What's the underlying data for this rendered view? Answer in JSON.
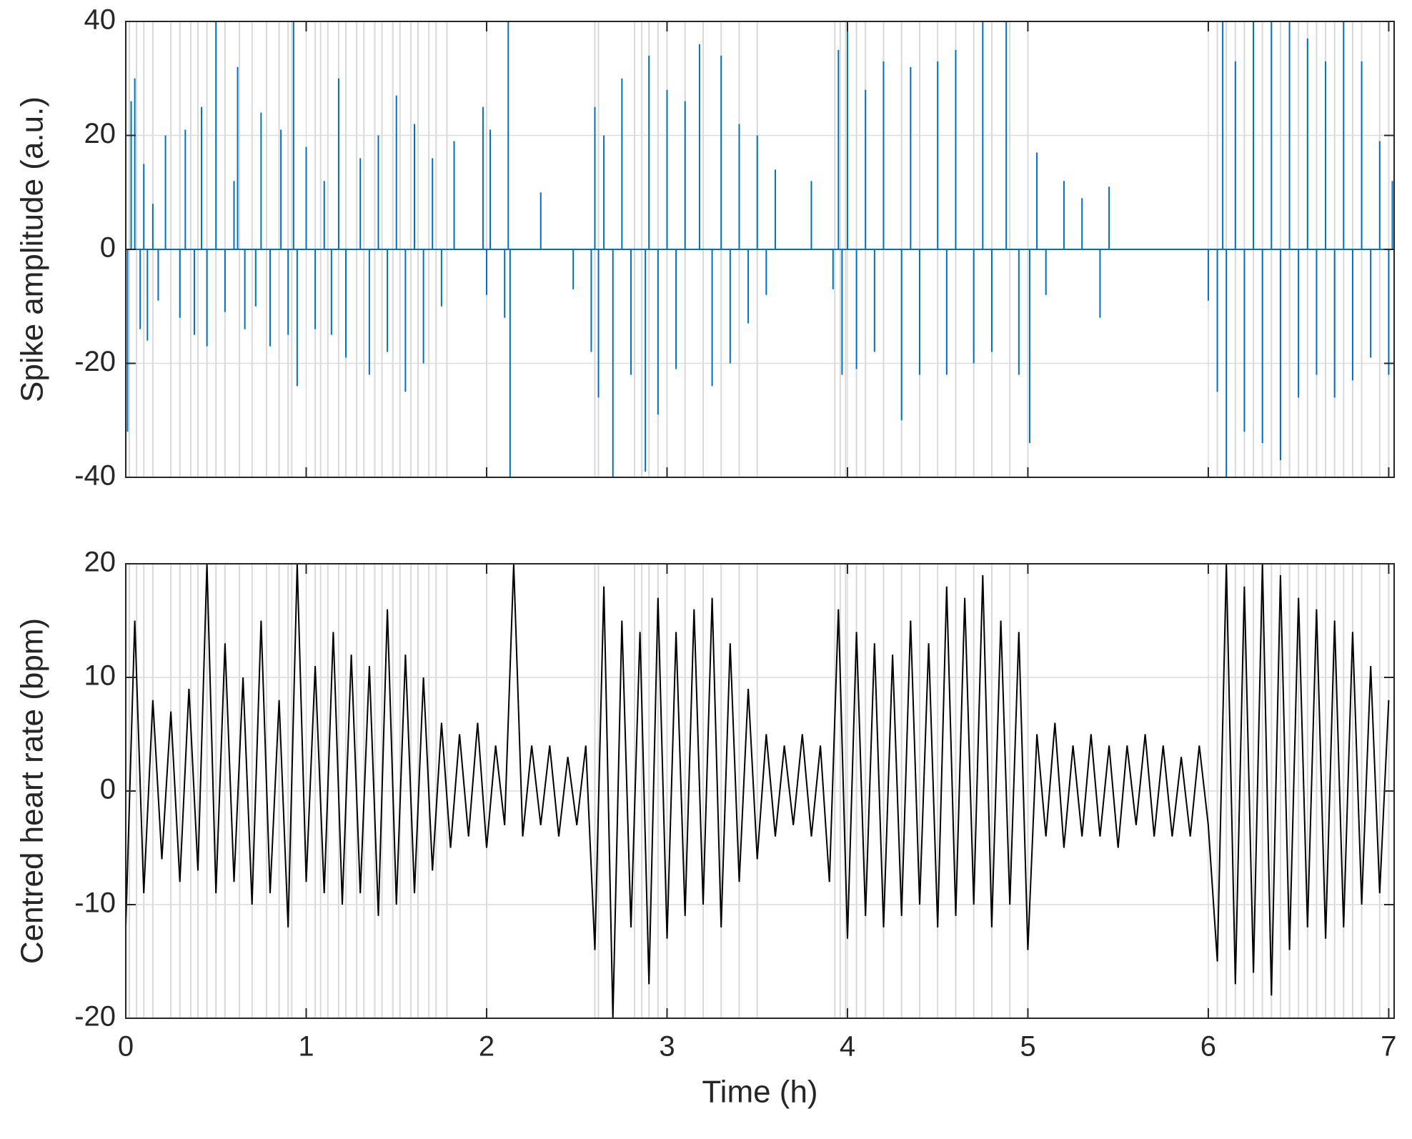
{
  "chart_data": [
    {
      "type": "stem",
      "ylabel": "Spike amplitude (a.u.)",
      "color": "#0072bd",
      "grid": true,
      "xlim": [
        0,
        7.03
      ],
      "xticks": [
        0,
        1,
        2,
        3,
        4,
        5,
        6,
        7
      ],
      "ylim": [
        -40,
        40
      ],
      "yticks": [
        -40,
        -20,
        0,
        20,
        40
      ],
      "events": [
        0.02,
        0.06,
        0.1,
        0.15,
        0.25,
        0.3,
        0.36,
        0.4,
        0.45,
        0.5,
        0.55,
        0.63,
        0.7,
        0.78,
        0.85,
        0.9,
        0.92,
        1.05,
        1.08,
        1.12,
        1.18,
        1.22,
        1.28,
        1.32,
        1.38,
        1.42,
        1.48,
        1.52,
        1.58,
        1.62,
        1.68,
        1.72,
        1.78,
        2.0,
        2.6,
        2.62,
        2.82,
        2.86,
        2.9,
        2.95,
        3.0,
        3.1,
        3.2,
        3.3,
        3.4,
        3.5,
        3.93,
        3.96,
        3.99,
        4.05,
        4.1,
        4.2,
        4.3,
        4.4,
        4.5,
        4.6,
        4.7,
        4.8,
        4.9,
        5.0,
        6.05,
        6.1,
        6.15,
        6.2,
        6.25,
        6.3,
        6.35,
        6.4,
        6.45,
        6.5,
        6.55,
        6.6,
        6.65,
        6.7,
        6.75,
        6.8,
        6.85,
        6.95,
        7.0
      ],
      "x": [
        0.01,
        0.03,
        0.05,
        0.08,
        0.1,
        0.12,
        0.15,
        0.18,
        0.22,
        0.3,
        0.33,
        0.38,
        0.42,
        0.45,
        0.5,
        0.55,
        0.6,
        0.62,
        0.66,
        0.72,
        0.75,
        0.8,
        0.86,
        0.9,
        0.93,
        0.95,
        1.0,
        1.05,
        1.1,
        1.14,
        1.18,
        1.22,
        1.3,
        1.35,
        1.4,
        1.45,
        1.5,
        1.55,
        1.6,
        1.65,
        1.7,
        1.75,
        1.82,
        1.98,
        2.0,
        2.02,
        2.1,
        2.12,
        2.13,
        2.3,
        2.48,
        2.58,
        2.6,
        2.62,
        2.65,
        2.7,
        2.75,
        2.8,
        2.88,
        2.9,
        2.95,
        3.0,
        3.05,
        3.1,
        3.18,
        3.25,
        3.3,
        3.35,
        3.4,
        3.45,
        3.5,
        3.55,
        3.6,
        3.8,
        3.92,
        3.95,
        3.97,
        4.0,
        4.05,
        4.1,
        4.15,
        4.2,
        4.3,
        4.35,
        4.4,
        4.5,
        4.55,
        4.6,
        4.7,
        4.75,
        4.8,
        4.88,
        4.95,
        5.01,
        5.05,
        5.1,
        5.2,
        5.3,
        5.4,
        5.45,
        6.0,
        6.05,
        6.08,
        6.1,
        6.15,
        6.2,
        6.25,
        6.3,
        6.35,
        6.4,
        6.45,
        6.5,
        6.55,
        6.6,
        6.65,
        6.7,
        6.75,
        6.8,
        6.85,
        6.9,
        6.95,
        7.0,
        7.02
      ],
      "values": [
        -32,
        26,
        30,
        -14,
        15,
        -16,
        8,
        -9,
        20,
        -12,
        21,
        -15,
        25,
        -17,
        40,
        -11,
        12,
        32,
        -14,
        -10,
        24,
        -17,
        21,
        -15,
        40,
        -24,
        18,
        -14,
        12,
        -15,
        30,
        -19,
        16,
        -22,
        20,
        -18,
        27,
        -25,
        22,
        -20,
        16,
        -10,
        19,
        25,
        -8,
        21,
        -12,
        40,
        -40,
        10,
        -7,
        -18,
        25,
        -26,
        20,
        -40,
        30,
        -22,
        -39,
        34,
        -29,
        28,
        -21,
        26,
        36,
        -24,
        34,
        -20,
        22,
        -13,
        20,
        -8,
        14,
        12,
        -7,
        35,
        -22,
        40,
        -21,
        28,
        -18,
        33,
        -30,
        32,
        -22,
        33,
        -22,
        35,
        -20,
        40,
        -18,
        40,
        -22,
        -34,
        17,
        -8,
        12,
        9,
        -12,
        11,
        -9,
        -25,
        40,
        -40,
        33,
        -32,
        40,
        -34,
        40,
        -37,
        40,
        -26,
        37,
        -22,
        33,
        -26,
        40,
        -23,
        33,
        -19,
        19,
        -22,
        12
      ]
    },
    {
      "type": "line",
      "ylabel": "Centred heart rate (bpm)",
      "xlabel": "Time (h)",
      "color": "#000000",
      "grid": true,
      "xlim": [
        0,
        7.03
      ],
      "xticks": [
        0,
        1,
        2,
        3,
        4,
        5,
        6,
        7
      ],
      "ylim": [
        -20,
        20
      ],
      "yticks": [
        -20,
        -10,
        0,
        10,
        20
      ],
      "x": [
        0,
        0.05,
        0.1,
        0.15,
        0.2,
        0.25,
        0.3,
        0.35,
        0.4,
        0.45,
        0.5,
        0.55,
        0.6,
        0.65,
        0.7,
        0.75,
        0.8,
        0.85,
        0.9,
        0.95,
        1,
        1.05,
        1.1,
        1.15,
        1.2,
        1.25,
        1.3,
        1.35,
        1.4,
        1.45,
        1.5,
        1.55,
        1.6,
        1.65,
        1.7,
        1.75,
        1.8,
        1.85,
        1.9,
        1.95,
        2,
        2.05,
        2.1,
        2.15,
        2.2,
        2.25,
        2.3,
        2.35,
        2.4,
        2.45,
        2.5,
        2.55,
        2.6,
        2.65,
        2.7,
        2.75,
        2.8,
        2.85,
        2.9,
        2.95,
        3,
        3.05,
        3.1,
        3.15,
        3.2,
        3.25,
        3.3,
        3.35,
        3.4,
        3.45,
        3.5,
        3.55,
        3.6,
        3.65,
        3.7,
        3.75,
        3.8,
        3.85,
        3.9,
        3.95,
        4,
        4.05,
        4.1,
        4.15,
        4.2,
        4.25,
        4.3,
        4.35,
        4.4,
        4.45,
        4.5,
        4.55,
        4.6,
        4.65,
        4.7,
        4.75,
        4.8,
        4.85,
        4.9,
        4.95,
        5,
        5.05,
        5.1,
        5.15,
        5.2,
        5.25,
        5.3,
        5.35,
        5.4,
        5.45,
        5.5,
        5.55,
        5.6,
        5.65,
        5.7,
        5.75,
        5.8,
        5.85,
        5.9,
        5.95,
        6,
        6.05,
        6.1,
        6.15,
        6.2,
        6.25,
        6.3,
        6.35,
        6.4,
        6.45,
        6.5,
        6.55,
        6.6,
        6.65,
        6.7,
        6.75,
        6.8,
        6.85,
        6.9,
        6.95,
        7
      ],
      "values": [
        -12,
        15,
        -9,
        8,
        -6,
        7,
        -8,
        9,
        -7,
        20,
        -9,
        13,
        -8,
        10,
        -10,
        15,
        -9,
        8,
        -12,
        20,
        -8,
        11,
        -9,
        14,
        -10,
        12,
        -9,
        11,
        -11,
        16,
        -10,
        12,
        -9,
        10,
        -7,
        6,
        -5,
        5,
        -4,
        6,
        -5,
        4,
        -3,
        20,
        -4,
        4,
        -3,
        4,
        -4,
        3,
        -3,
        4,
        -14,
        18,
        -20,
        15,
        -12,
        14,
        -17,
        17,
        -13,
        14,
        -11,
        16,
        -10,
        17,
        -12,
        13,
        -8,
        9,
        -6,
        5,
        -4,
        4,
        -3,
        5,
        -4,
        4,
        -8,
        16,
        -13,
        14,
        -11,
        13,
        -12,
        12,
        -11,
        15,
        -10,
        13,
        -12,
        18,
        -11,
        17,
        -10,
        19,
        -12,
        15,
        -10,
        14,
        -14,
        5,
        -4,
        6,
        -5,
        4,
        -4,
        5,
        -4,
        4,
        -5,
        4,
        -3,
        5,
        -4,
        4,
        -4,
        3,
        -4,
        4,
        -3,
        -15,
        20,
        -17,
        18,
        -16,
        20,
        -18,
        19,
        -14,
        17,
        -12,
        16,
        -13,
        15,
        -12,
        14,
        -10,
        11,
        -9,
        8
      ]
    }
  ]
}
